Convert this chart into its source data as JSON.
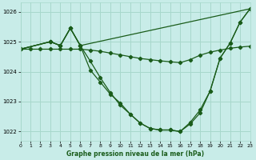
{
  "title": "Graphe pression niveau de la mer (hPa)",
  "bg_color": "#c8ece8",
  "grid_color": "#a8d8cc",
  "line_color": "#1a5c1a",
  "xlim": [
    0,
    23
  ],
  "ylim": [
    1021.7,
    1026.3
  ],
  "yticks": [
    1022,
    1023,
    1024,
    1025,
    1026
  ],
  "xticks": [
    0,
    1,
    2,
    3,
    4,
    5,
    6,
    7,
    8,
    9,
    10,
    11,
    12,
    13,
    14,
    15,
    16,
    17,
    18,
    19,
    20,
    21,
    22,
    23
  ],
  "s1_x": [
    0,
    1,
    2,
    3,
    4,
    5,
    6,
    7,
    8,
    9,
    10,
    11,
    12,
    13,
    14,
    15,
    16,
    17,
    18,
    19,
    20,
    21,
    22,
    23
  ],
  "s1_y": [
    1024.75,
    1024.75,
    1024.75,
    1024.75,
    1024.75,
    1024.75,
    1024.75,
    1024.72,
    1024.68,
    1024.62,
    1024.56,
    1024.5,
    1024.44,
    1024.4,
    1024.36,
    1024.33,
    1024.3,
    1024.4,
    1024.55,
    1024.65,
    1024.72,
    1024.78,
    1024.82,
    1024.85
  ],
  "s2_x": [
    0,
    3,
    4,
    5,
    6,
    23
  ],
  "s2_y": [
    1024.75,
    1025.0,
    1024.87,
    1025.45,
    1024.87,
    1026.1
  ],
  "s3_x": [
    0,
    3,
    4,
    5,
    6,
    7,
    8,
    9,
    10,
    11,
    12,
    13,
    14,
    15,
    16,
    17,
    18,
    19,
    20,
    21,
    22,
    23
  ],
  "s3_y": [
    1024.75,
    1025.0,
    1024.87,
    1025.45,
    1024.87,
    1024.05,
    1023.65,
    1023.25,
    1022.95,
    1022.58,
    1022.28,
    1022.1,
    1022.05,
    1022.05,
    1022.0,
    1022.3,
    1022.72,
    1023.35,
    1024.45,
    1024.95,
    1025.65,
    1026.1
  ],
  "s4_x": [
    0,
    3,
    4,
    5,
    6,
    7,
    8,
    9,
    10,
    11,
    12,
    13,
    14,
    15,
    16,
    17,
    18,
    19,
    20,
    21,
    22,
    23
  ],
  "s4_y": [
    1024.75,
    1025.0,
    1024.87,
    1025.45,
    1024.87,
    1024.35,
    1023.8,
    1023.3,
    1022.88,
    1022.58,
    1022.28,
    1022.1,
    1022.05,
    1022.05,
    1022.0,
    1022.25,
    1022.62,
    1023.35,
    1024.45,
    1024.95,
    1025.65,
    1026.1
  ]
}
